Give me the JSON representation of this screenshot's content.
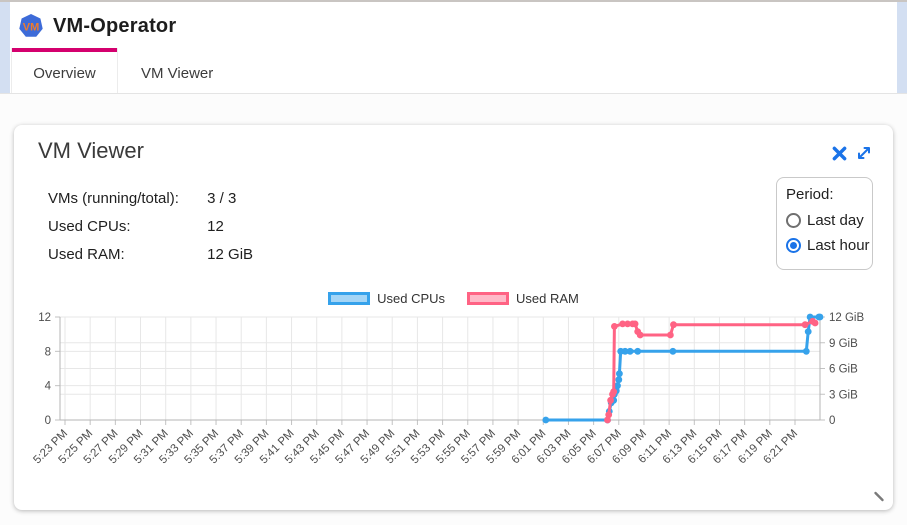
{
  "header": {
    "title": "VM-Operator",
    "logo_text": "VM",
    "tabs": [
      {
        "label": "Overview",
        "active": true
      },
      {
        "label": "VM Viewer",
        "active": false
      }
    ]
  },
  "card": {
    "title": "VM Viewer",
    "stats": [
      {
        "label": "VMs (running/total):",
        "value": "3 / 3"
      },
      {
        "label": "Used CPUs:",
        "value": "12"
      },
      {
        "label": "Used RAM:",
        "value": "12 GiB"
      }
    ],
    "period": {
      "label": "Period:",
      "options": [
        {
          "label": "Last day",
          "selected": false
        },
        {
          "label": "Last hour",
          "selected": true
        }
      ]
    }
  },
  "colors": {
    "accent_blue": "#1a73e8",
    "tab_indicator": "#d4006e",
    "cpu_line": "#36A2EB",
    "ram_line": "#FF6384"
  },
  "chart_data": {
    "type": "line",
    "title": "",
    "xlabel": "",
    "legend_position": "top",
    "grid": true,
    "x_axis": {
      "unit": "minutes after 5:23 PM",
      "range": [
        0,
        60
      ],
      "tick_step_minutes": 2,
      "tick_labels": [
        "5:23 PM",
        "5:25 PM",
        "5:27 PM",
        "5:29 PM",
        "5:31 PM",
        "5:33 PM",
        "5:35 PM",
        "5:37 PM",
        "5:39 PM",
        "5:41 PM",
        "5:43 PM",
        "5:45 PM",
        "5:47 PM",
        "5:49 PM",
        "5:51 PM",
        "5:53 PM",
        "5:55 PM",
        "5:57 PM",
        "5:59 PM",
        "6:01 PM",
        "6:03 PM",
        "6:05 PM",
        "6:07 PM",
        "6:09 PM",
        "6:11 PM",
        "6:13 PM",
        "6:15 PM",
        "6:17 PM",
        "6:19 PM",
        "6:21 PM"
      ]
    },
    "y_left": {
      "max": 12,
      "ticks": [
        {
          "v": 0,
          "label": "0"
        },
        {
          "v": 4,
          "label": "4"
        },
        {
          "v": 8,
          "label": "8"
        },
        {
          "v": 12,
          "label": "12"
        }
      ]
    },
    "y_right": {
      "max": 12,
      "ticks": [
        {
          "v": 0,
          "label": "0"
        },
        {
          "v": 3,
          "label": "3 GiB"
        },
        {
          "v": 6,
          "label": "6 GiB"
        },
        {
          "v": 9,
          "label": "9 GiB"
        },
        {
          "v": 12,
          "label": "12 GiB"
        }
      ]
    },
    "series": [
      {
        "name": "Used CPUs",
        "axis": "left",
        "color": "#36A2EB",
        "fill": "rgba(54,162,235,0.45)",
        "points": [
          [
            38.2,
            0
          ],
          [
            43.1,
            0
          ],
          [
            43.25,
            1
          ],
          [
            43.4,
            2
          ],
          [
            43.6,
            2.3
          ],
          [
            43.65,
            3
          ],
          [
            43.8,
            3.4
          ],
          [
            43.9,
            4
          ],
          [
            44.0,
            4.7
          ],
          [
            44.05,
            5.4
          ],
          [
            44.15,
            8
          ],
          [
            44.5,
            8
          ],
          [
            44.9,
            8
          ],
          [
            45.5,
            8
          ],
          [
            48.3,
            8
          ],
          [
            58.9,
            8
          ],
          [
            59.05,
            10.3
          ],
          [
            59.2,
            12
          ],
          [
            59.9,
            12
          ],
          [
            60,
            12
          ]
        ]
      },
      {
        "name": "Used RAM",
        "axis": "right",
        "color": "#FF6384",
        "fill": "rgba(255,99,132,0.45)",
        "points": [
          [
            43.1,
            0
          ],
          [
            43.2,
            0.6
          ],
          [
            43.35,
            2.3
          ],
          [
            43.5,
            3
          ],
          [
            43.6,
            3.3
          ],
          [
            43.65,
            10.9
          ],
          [
            44.3,
            11.2
          ],
          [
            44.7,
            11.2
          ],
          [
            45.1,
            11.2
          ],
          [
            45.3,
            11.2
          ],
          [
            45.5,
            10.3
          ],
          [
            45.7,
            9.9
          ],
          [
            48.1,
            9.9
          ],
          [
            48.35,
            11.1
          ],
          [
            58.8,
            11.1
          ],
          [
            59.4,
            11.5
          ],
          [
            59.6,
            11.3
          ]
        ]
      }
    ]
  }
}
